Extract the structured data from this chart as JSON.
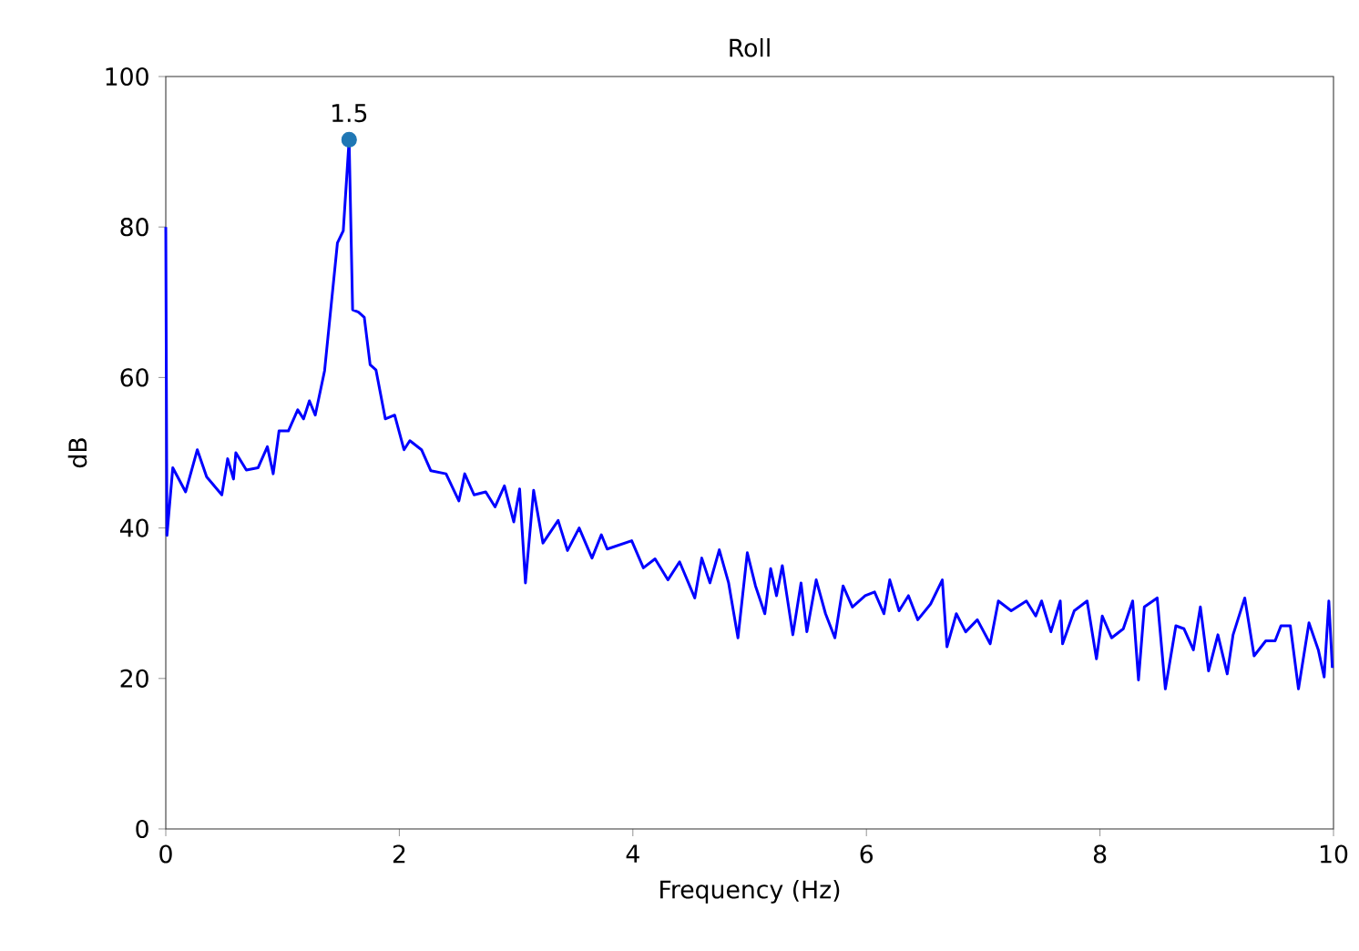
{
  "chart_data": {
    "type": "line",
    "title": "Roll",
    "xlabel": "Frequency (Hz)",
    "ylabel": "dB",
    "xlim": [
      0,
      10
    ],
    "ylim": [
      0,
      100
    ],
    "xticks": [
      0,
      2,
      4,
      6,
      8,
      10
    ],
    "yticks": [
      0,
      20,
      40,
      60,
      80,
      100
    ],
    "grid": false,
    "annotations": [
      {
        "text": "1.5",
        "x": 1.57,
        "y": 91.6
      }
    ],
    "series": [
      {
        "color": "#0000ff",
        "marker": "none",
        "x": [
          0,
          0.01,
          0.06,
          0.17,
          0.27,
          0.35,
          0.48,
          0.53,
          0.58,
          0.6,
          0.69,
          0.79,
          0.87,
          0.92,
          0.97,
          1.05,
          1.13,
          1.18,
          1.23,
          1.28,
          1.36,
          1.47,
          1.52,
          1.57,
          1.6,
          1.65,
          1.7,
          1.75,
          1.8,
          1.88,
          1.96,
          2.04,
          2.09,
          2.19,
          2.27,
          2.4,
          2.51,
          2.56,
          2.64,
          2.74,
          2.82,
          2.9,
          2.98,
          3.03,
          3.08,
          3.15,
          3.23,
          3.36,
          3.44,
          3.54,
          3.65,
          3.73,
          3.78,
          3.99,
          4.09,
          4.19,
          4.3,
          4.4,
          4.53,
          4.59,
          4.66,
          4.74,
          4.82,
          4.9,
          4.98,
          5.05,
          5.13,
          5.18,
          5.23,
          5.28,
          5.37,
          5.44,
          5.49,
          5.57,
          5.65,
          5.73,
          5.8,
          5.88,
          5.99,
          6.07,
          6.15,
          6.2,
          6.28,
          6.36,
          6.44,
          6.55,
          6.65,
          6.69,
          6.77,
          6.85,
          6.95,
          7.06,
          7.13,
          7.24,
          7.37,
          7.45,
          7.5,
          7.58,
          7.66,
          7.68,
          7.78,
          7.89,
          7.97,
          8.02,
          8.1,
          8.2,
          8.28,
          8.33,
          8.38,
          8.49,
          8.56,
          8.65,
          8.72,
          8.8,
          8.86,
          8.93,
          9.01,
          9.09,
          9.14,
          9.24,
          9.32,
          9.42,
          9.5,
          9.55,
          9.63,
          9.7,
          9.79,
          9.87,
          9.92,
          9.96,
          9.99
        ],
        "values": [
          80,
          39,
          48,
          44.8,
          50.4,
          46.8,
          44.4,
          49.2,
          46.5,
          50,
          47.7,
          48,
          50.8,
          47.2,
          52.9,
          52.9,
          55.7,
          54.5,
          56.9,
          55,
          60.9,
          77.9,
          79.5,
          91.6,
          69,
          68.7,
          68,
          61.7,
          61,
          54.5,
          55,
          50.4,
          51.6,
          50.4,
          47.6,
          47.2,
          43.6,
          47.2,
          44.4,
          44.8,
          42.8,
          45.6,
          40.8,
          45.2,
          32.7,
          45,
          38,
          41,
          37,
          40,
          36,
          39.1,
          37.2,
          38.3,
          34.7,
          35.9,
          33.1,
          35.5,
          30.7,
          36,
          32.7,
          37.1,
          32.7,
          25.4,
          36.7,
          32.3,
          28.6,
          34.6,
          31,
          35,
          25.8,
          32.7,
          26.2,
          33.1,
          28.6,
          25.4,
          32.3,
          29.5,
          31,
          31.5,
          28.6,
          33.1,
          29,
          31,
          27.8,
          29.9,
          33.1,
          24.2,
          28.6,
          26.2,
          27.8,
          24.6,
          30.3,
          29,
          30.3,
          28.3,
          30.3,
          26.2,
          30.3,
          24.6,
          29,
          30.3,
          22.6,
          28.3,
          25.4,
          26.6,
          30.3,
          19.8,
          29.5,
          30.7,
          18.6,
          27,
          26.6,
          23.8,
          29.5,
          21,
          25.8,
          20.6,
          25.8,
          30.7,
          23,
          25,
          25,
          27,
          27,
          18.6,
          27.4,
          23.8,
          20.2,
          30.3,
          21.4
        ]
      },
      {
        "type": "scatter",
        "color": "#1f77b4",
        "marker": "circle",
        "x": [
          1.57
        ],
        "values": [
          91.6
        ]
      }
    ]
  }
}
